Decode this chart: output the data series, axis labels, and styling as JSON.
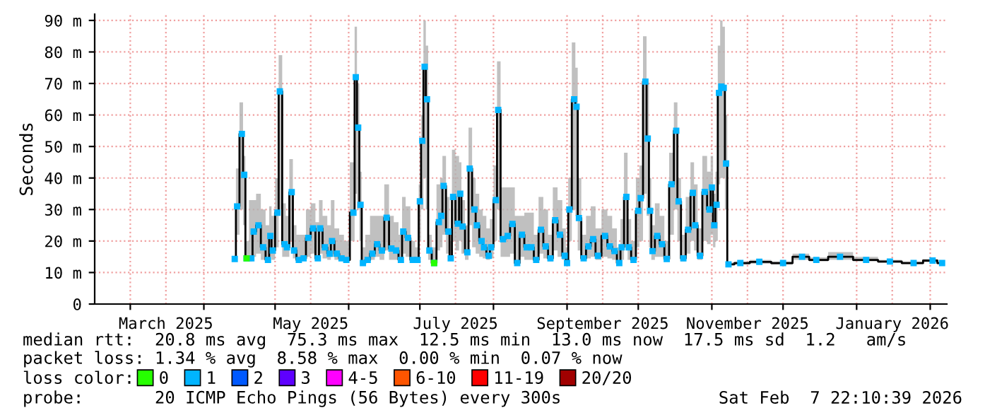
{
  "chart_data": {
    "type": "line",
    "ylabel": "Seconds",
    "legend_title": "loss color:",
    "legend": "bottom",
    "grid": true,
    "marker": "square",
    "line_style": "solid",
    "xlim": [
      "2025-02-14",
      "2026-02-08"
    ],
    "xticks": [
      {
        "value": "2025-03-01",
        "label": null
      },
      {
        "value": "2025-03-16",
        "label": "March 2025"
      },
      {
        "value": "2025-04-01",
        "label": null
      },
      {
        "value": "2025-05-01",
        "label": null
      },
      {
        "value": "2025-05-16",
        "label": "May 2025"
      },
      {
        "value": "2025-06-01",
        "label": null
      },
      {
        "value": "2025-07-01",
        "label": null
      },
      {
        "value": "2025-07-16",
        "label": "July 2025"
      },
      {
        "value": "2025-08-01",
        "label": null
      },
      {
        "value": "2025-09-01",
        "label": null
      },
      {
        "value": "2025-09-16",
        "label": "September 2025"
      },
      {
        "value": "2025-10-01",
        "label": null
      },
      {
        "value": "2025-11-01",
        "label": null
      },
      {
        "value": "2025-11-16",
        "label": "November 2025"
      },
      {
        "value": "2025-12-01",
        "label": null
      },
      {
        "value": "2026-01-01",
        "label": null
      },
      {
        "value": "2026-01-16",
        "label": "January 2026"
      },
      {
        "value": "2026-02-01",
        "label": null
      }
    ],
    "ylim": [
      0,
      92
    ],
    "yticks": [
      0,
      {
        "value": 10,
        "label": "10 m"
      },
      {
        "value": 20,
        "label": "20 m"
      },
      {
        "value": 30,
        "label": "30 m"
      },
      {
        "value": 40,
        "label": "40 m"
      },
      {
        "value": 50,
        "label": "50 m"
      },
      {
        "value": 60,
        "label": "60 m"
      },
      {
        "value": 70,
        "label": "70 m"
      },
      {
        "value": 80,
        "label": "80 m"
      },
      {
        "value": 90,
        "label": "90 m"
      }
    ],
    "x": [
      "2025-04-14",
      "2025-04-15",
      "2025-04-17",
      "2025-04-18",
      "2025-04-19",
      "2025-04-21",
      "2025-04-22",
      "2025-04-24",
      "2025-04-26",
      "2025-04-28",
      "2025-04-29",
      "2025-04-30",
      "2025-05-02",
      "2025-05-03",
      "2025-05-05",
      "2025-05-06",
      "2025-05-08",
      "2025-05-09",
      "2025-05-11",
      "2025-05-13",
      "2025-05-15",
      "2025-05-17",
      "2025-05-19",
      "2025-05-20",
      "2025-05-22",
      "2025-05-24",
      "2025-05-25",
      "2025-05-27",
      "2025-05-29",
      "2025-05-31",
      "2025-06-03",
      "2025-06-04",
      "2025-06-05",
      "2025-06-06",
      "2025-06-07",
      "2025-06-09",
      "2025-06-11",
      "2025-06-13",
      "2025-06-15",
      "2025-06-17",
      "2025-06-19",
      "2025-06-21",
      "2025-06-23",
      "2025-06-24",
      "2025-06-26",
      "2025-06-28",
      "2025-06-30",
      "2025-07-01",
      "2025-07-02",
      "2025-07-03",
      "2025-07-04",
      "2025-07-05",
      "2025-07-07",
      "2025-07-09",
      "2025-07-10",
      "2025-07-11",
      "2025-07-13",
      "2025-07-14",
      "2025-07-15",
      "2025-07-17",
      "2025-07-18",
      "2025-07-19",
      "2025-07-21",
      "2025-07-22",
      "2025-07-24",
      "2025-07-25",
      "2025-07-27",
      "2025-07-28",
      "2025-07-30",
      "2025-07-31",
      "2025-08-02",
      "2025-08-03",
      "2025-08-05",
      "2025-08-07",
      "2025-08-09",
      "2025-08-11",
      "2025-08-13",
      "2025-08-15",
      "2025-08-17",
      "2025-08-19",
      "2025-08-21",
      "2025-08-23",
      "2025-08-25",
      "2025-08-27",
      "2025-08-29",
      "2025-08-31",
      "2025-09-01",
      "2025-09-02",
      "2025-09-04",
      "2025-09-05",
      "2025-09-06",
      "2025-09-08",
      "2025-09-10",
      "2025-09-12",
      "2025-09-14",
      "2025-09-17",
      "2025-09-19",
      "2025-09-21",
      "2025-09-23",
      "2025-09-24",
      "2025-09-26",
      "2025-09-27",
      "2025-09-29",
      "2025-10-01",
      "2025-10-02",
      "2025-10-04",
      "2025-10-05",
      "2025-10-06",
      "2025-10-07",
      "2025-10-09",
      "2025-10-11",
      "2025-10-13",
      "2025-10-15",
      "2025-10-17",
      "2025-10-18",
      "2025-10-20",
      "2025-10-22",
      "2025-10-24",
      "2025-10-25",
      "2025-10-27",
      "2025-10-29",
      "2025-10-31",
      "2025-11-01",
      "2025-11-02",
      "2025-11-03",
      "2025-11-04",
      "2025-11-05",
      "2025-11-06",
      "2025-11-07",
      "2025-11-08",
      "2025-11-13",
      "2025-11-21",
      "2025-12-01",
      "2025-12-09",
      "2025-12-15",
      "2025-12-25",
      "2026-01-05",
      "2026-01-15",
      "2026-01-25",
      "2026-02-02",
      "2026-02-06"
    ],
    "series": [
      {
        "name": "0",
        "color": "#26ff00",
        "type": "scatter",
        "x": [
          "2025-04-19",
          "2025-07-07"
        ],
        "values": [
          14.5,
          13
        ]
      },
      {
        "name": "1",
        "color": "#00b4ff",
        "values": [
          14.3,
          31,
          54,
          41,
          14.5,
          14.5,
          23,
          25,
          18,
          14,
          21.6,
          17,
          29,
          67.5,
          19,
          18,
          35.5,
          17,
          14,
          14.5,
          21,
          24,
          14.5,
          24,
          18,
          16,
          20,
          16,
          14.5,
          14,
          29,
          72,
          56,
          31.5,
          13,
          14,
          16,
          19,
          17,
          27.4,
          17.6,
          17,
          14,
          23,
          21,
          14,
          14,
          32.6,
          51.8,
          75.3,
          65,
          17,
          13,
          26,
          28,
          37.5,
          23,
          14.5,
          34,
          25.5,
          35,
          24.6,
          16.4,
          43,
          30,
          25,
          20,
          18,
          15.3,
          18,
          33,
          61.6,
          20.6,
          21.6,
          25.4,
          13,
          22,
          18,
          18,
          14,
          23.6,
          18.3,
          14.5,
          26.6,
          22,
          15.3,
          13,
          30,
          65,
          62.6,
          27.3,
          14.5,
          18.3,
          20.6,
          15.3,
          21.6,
          18.3,
          16.8,
          13,
          18,
          34,
          18,
          14,
          29.6,
          33.6,
          70.6,
          52.5,
          29.6,
          16.8,
          21.6,
          19,
          14.3,
          38,
          55,
          32.6,
          14.5,
          23.6,
          35.3,
          25,
          15.3,
          35.6,
          30,
          37,
          25,
          31.5,
          67,
          69,
          68.6,
          44.6,
          12.6,
          13,
          13.4,
          13,
          15,
          14,
          15,
          14,
          13.5,
          13,
          13.8,
          13
        ],
        "lower": [
          13.5,
          22,
          30,
          25,
          13.5,
          13.5,
          15,
          16,
          14,
          13.5,
          15,
          14,
          18,
          30,
          15,
          15,
          20,
          14.5,
          13.5,
          14,
          15,
          16,
          14,
          16,
          14.5,
          14,
          15,
          14,
          14,
          13.5,
          20,
          35,
          30,
          20,
          12.5,
          13,
          14,
          15,
          14,
          17,
          14,
          14,
          13,
          16,
          15,
          13,
          13,
          20,
          30,
          40,
          30,
          14,
          12.5,
          17,
          18,
          22,
          16,
          14,
          20,
          17,
          20,
          16,
          14,
          25,
          18,
          16,
          15,
          14.5,
          14,
          14.5,
          20,
          30,
          15,
          15,
          16,
          12.5,
          15,
          14,
          14,
          13,
          16,
          14.5,
          13.5,
          17,
          15,
          14,
          12.5,
          20,
          30,
          28,
          17,
          14,
          14.5,
          15,
          14,
          15,
          14.5,
          14,
          12.5,
          14,
          18,
          14,
          13,
          18,
          20,
          35,
          28,
          18,
          14,
          15,
          15,
          13.5,
          22,
          30,
          20,
          13.5,
          16,
          20,
          17,
          14,
          20,
          19,
          22,
          18,
          20,
          38,
          40,
          40,
          30,
          12.3,
          12.5,
          12.8,
          12.5,
          14,
          13.5,
          14,
          13.5,
          13,
          12.7,
          13.3,
          12.7
        ],
        "upper": [
          15.5,
          43,
          64,
          47,
          20,
          33,
          33,
          35,
          30,
          25,
          31,
          28,
          40,
          79,
          32,
          28,
          46,
          25,
          22,
          22,
          30,
          32,
          26,
          33,
          28,
          25,
          33,
          24,
          22,
          20,
          45,
          88,
          70,
          42,
          18,
          22,
          28,
          28,
          28,
          38,
          28,
          26,
          22,
          34,
          31,
          20,
          18,
          38,
          60,
          90,
          82,
          22,
          18,
          38,
          40,
          47,
          34,
          20,
          49,
          47,
          45,
          33,
          25,
          56,
          40,
          35,
          30,
          28,
          24,
          27,
          44,
          77,
          37,
          37,
          37,
          28,
          28,
          29,
          29,
          22,
          34,
          30,
          22,
          37,
          33,
          24,
          18,
          40,
          83,
          75,
          40,
          22,
          28,
          31,
          24,
          30,
          28,
          24,
          18,
          27,
          48,
          27,
          20,
          40,
          44,
          85,
          70,
          40,
          25,
          32,
          28,
          20,
          48,
          64,
          40,
          22,
          34,
          45,
          38,
          24,
          47,
          42,
          47,
          35,
          42,
          82,
          90,
          88,
          60,
          13.2,
          13.5,
          14,
          13.5,
          16,
          14.8,
          16.5,
          15,
          14,
          13.5,
          14.2,
          13.4
        ]
      },
      {
        "name": "2",
        "color": "#0059ff",
        "values": [
          null,
          null,
          null,
          null,
          null,
          null,
          null,
          null,
          null,
          null,
          null,
          null,
          null,
          null,
          null,
          null,
          null,
          null,
          null,
          null,
          null,
          null,
          null,
          null,
          null,
          null,
          null,
          null,
          null,
          null,
          null,
          null,
          null,
          null,
          null,
          null,
          null,
          null,
          null,
          null,
          null,
          null,
          null,
          null,
          null,
          null,
          null,
          null,
          null,
          null,
          null,
          null,
          null,
          null,
          null,
          null,
          null,
          null,
          null,
          null,
          null,
          null,
          null,
          null,
          null,
          null,
          null,
          null,
          null,
          null,
          null,
          null,
          null,
          null,
          null,
          null,
          null,
          null,
          null,
          null,
          null,
          null,
          null,
          null,
          null,
          null,
          null,
          null,
          null,
          null,
          null,
          null,
          null,
          null,
          null,
          null,
          null,
          null,
          null,
          null,
          null,
          null,
          null,
          null,
          null,
          null,
          null,
          null,
          null,
          null,
          null,
          null,
          null,
          null,
          null,
          null,
          null,
          null,
          null,
          null,
          null,
          null,
          null,
          null,
          null,
          null,
          null,
          null,
          null,
          null,
          null,
          null,
          null,
          null,
          null,
          null,
          null,
          null,
          null,
          null,
          null
        ]
      },
      {
        "name": "3",
        "color": "#5e00ff",
        "values": [
          null,
          null,
          null,
          null,
          null,
          null,
          null,
          null,
          null,
          null,
          null,
          null,
          null,
          null,
          null,
          null,
          null,
          null,
          null,
          null,
          null,
          null,
          null,
          null,
          null,
          null,
          null,
          null,
          null,
          null,
          null,
          null,
          null,
          null,
          null,
          null,
          null,
          null,
          null,
          null,
          null,
          null,
          null,
          null,
          null,
          null,
          null,
          null,
          null,
          null,
          null,
          null,
          null,
          null,
          null,
          null,
          null,
          null,
          null,
          null,
          null,
          null,
          null,
          null,
          null,
          null,
          null,
          null,
          null,
          null,
          null,
          null,
          null,
          null,
          null,
          null,
          null,
          null,
          null,
          null,
          null,
          null,
          null,
          null,
          null,
          null,
          null,
          null,
          null,
          null,
          null,
          null,
          null,
          null,
          null,
          null,
          null,
          null,
          null,
          null,
          null,
          null,
          null,
          null,
          null,
          null,
          null,
          null,
          null,
          null,
          null,
          null,
          null,
          null,
          null,
          null,
          null,
          null,
          null,
          null,
          null,
          null,
          null,
          null,
          null,
          null,
          null,
          null,
          null,
          null,
          null,
          null,
          null,
          null,
          null,
          null,
          null,
          null,
          null,
          null,
          null
        ]
      },
      {
        "name": "4-5",
        "color": "#ff00ff",
        "values": [
          null,
          null,
          null,
          null,
          null,
          null,
          null,
          null,
          null,
          null,
          null,
          null,
          null,
          null,
          null,
          null,
          null,
          null,
          null,
          null,
          null,
          null,
          null,
          null,
          null,
          null,
          null,
          null,
          null,
          null,
          null,
          null,
          null,
          null,
          null,
          null,
          null,
          null,
          null,
          null,
          null,
          null,
          null,
          null,
          null,
          null,
          null,
          null,
          null,
          null,
          null,
          null,
          null,
          null,
          null,
          null,
          null,
          null,
          null,
          null,
          null,
          null,
          null,
          null,
          null,
          null,
          null,
          null,
          null,
          null,
          null,
          null,
          null,
          null,
          null,
          null,
          null,
          null,
          null,
          null,
          null,
          null,
          null,
          null,
          null,
          null,
          null,
          null,
          null,
          null,
          null,
          null,
          null,
          null,
          null,
          null,
          null,
          null,
          null,
          null,
          null,
          null,
          null,
          null,
          null,
          null,
          null,
          null,
          null,
          null,
          null,
          null,
          null,
          null,
          null,
          null,
          null,
          null,
          null,
          null,
          null,
          null,
          null,
          null,
          null,
          null,
          null,
          null,
          null,
          null,
          null,
          null,
          null,
          null,
          null,
          null,
          null,
          null,
          null,
          null,
          null
        ]
      },
      {
        "name": "6-10",
        "color": "#ff5500",
        "values": [
          null,
          null,
          null,
          null,
          null,
          null,
          null,
          null,
          null,
          null,
          null,
          null,
          null,
          null,
          null,
          null,
          null,
          null,
          null,
          null,
          null,
          null,
          null,
          null,
          null,
          null,
          null,
          null,
          null,
          null,
          null,
          null,
          null,
          null,
          null,
          null,
          null,
          null,
          null,
          null,
          null,
          null,
          null,
          null,
          null,
          null,
          null,
          null,
          null,
          null,
          null,
          null,
          null,
          null,
          null,
          null,
          null,
          null,
          null,
          null,
          null,
          null,
          null,
          null,
          null,
          null,
          null,
          null,
          null,
          null,
          null,
          null,
          null,
          null,
          null,
          null,
          null,
          null,
          null,
          null,
          null,
          null,
          null,
          null,
          null,
          null,
          null,
          null,
          null,
          null,
          null,
          null,
          null,
          null,
          null,
          null,
          null,
          null,
          null,
          null,
          null,
          null,
          null,
          null,
          null,
          null,
          null,
          null,
          null,
          null,
          null,
          null,
          null,
          null,
          null,
          null,
          null,
          null,
          null,
          null,
          null,
          null,
          null,
          null,
          null,
          null,
          null,
          null,
          null,
          null,
          null,
          null,
          null,
          null,
          null,
          null,
          null,
          null,
          null,
          null,
          null
        ]
      },
      {
        "name": "11-19",
        "color": "#ff0000",
        "values": [
          null,
          null,
          null,
          null,
          null,
          null,
          null,
          null,
          null,
          null,
          null,
          null,
          null,
          null,
          null,
          null,
          null,
          null,
          null,
          null,
          null,
          null,
          null,
          null,
          null,
          null,
          null,
          null,
          null,
          null,
          null,
          null,
          null,
          null,
          null,
          null,
          null,
          null,
          null,
          null,
          null,
          null,
          null,
          null,
          null,
          null,
          null,
          null,
          null,
          null,
          null,
          null,
          null,
          null,
          null,
          null,
          null,
          null,
          null,
          null,
          null,
          null,
          null,
          null,
          null,
          null,
          null,
          null,
          null,
          null,
          null,
          null,
          null,
          null,
          null,
          null,
          null,
          null,
          null,
          null,
          null,
          null,
          null,
          null,
          null,
          null,
          null,
          null,
          null,
          null,
          null,
          null,
          null,
          null,
          null,
          null,
          null,
          null,
          null,
          null,
          null,
          null,
          null,
          null,
          null,
          null,
          null,
          null,
          null,
          null,
          null,
          null,
          null,
          null,
          null,
          null,
          null,
          null,
          null,
          null,
          null,
          null,
          null,
          null,
          null,
          null,
          null,
          null,
          null,
          null,
          null,
          null,
          null,
          null,
          null,
          null,
          null,
          null,
          null,
          null,
          null
        ]
      },
      {
        "name": "20/20",
        "color": "#a10000",
        "values": [
          null,
          null,
          null,
          null,
          null,
          null,
          null,
          null,
          null,
          null,
          null,
          null,
          null,
          null,
          null,
          null,
          null,
          null,
          null,
          null,
          null,
          null,
          null,
          null,
          null,
          null,
          null,
          null,
          null,
          null,
          null,
          null,
          null,
          null,
          null,
          null,
          null,
          null,
          null,
          null,
          null,
          null,
          null,
          null,
          null,
          null,
          null,
          null,
          null,
          null,
          null,
          null,
          null,
          null,
          null,
          null,
          null,
          null,
          null,
          null,
          null,
          null,
          null,
          null,
          null,
          null,
          null,
          null,
          null,
          null,
          null,
          null,
          null,
          null,
          null,
          null,
          null,
          null,
          null,
          null,
          null,
          null,
          null,
          null,
          null,
          null,
          null,
          null,
          null,
          null,
          null,
          null,
          null,
          null,
          null,
          null,
          null,
          null,
          null,
          null,
          null,
          null,
          null,
          null,
          null,
          null,
          null,
          null,
          null,
          null,
          null,
          null,
          null,
          null,
          null,
          null,
          null,
          null,
          null,
          null,
          null,
          null,
          null,
          null,
          null,
          null,
          null,
          null,
          null,
          null,
          null,
          null,
          null,
          null,
          null,
          null,
          null,
          null,
          null,
          null,
          null
        ]
      }
    ],
    "annotations": [
      "median rtt:  20.8 ms avg  75.3 ms max  12.5 ms min  13.0 ms now  17.5 ms sd  1.2   am/s",
      "packet loss: 1.34 % avg  8.58 % max  0.00 % min  0.07 % now",
      "probe:       20 ICMP Echo Pings (56 Bytes) every 300s",
      "Sat Feb  7 22:10:39 2026"
    ]
  }
}
